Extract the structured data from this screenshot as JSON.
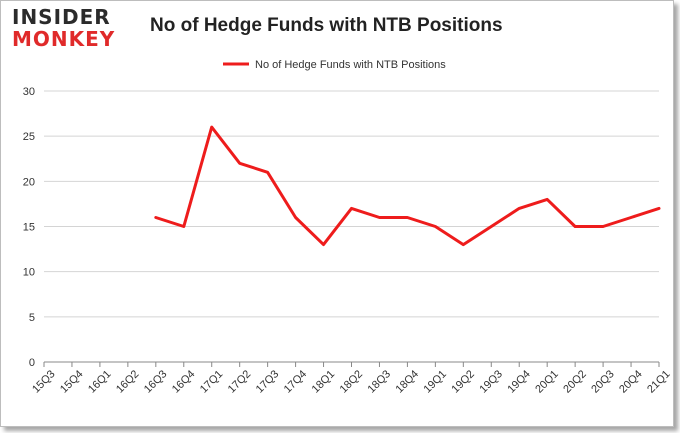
{
  "brand": {
    "line1": "INSIDER",
    "line2": "MONKEY",
    "colors": {
      "dark": "#2b2b2b",
      "red": "#e02a2a"
    }
  },
  "chart_data": {
    "type": "line",
    "title": "No of Hedge Funds with NTB Positions",
    "legend": {
      "position": "top",
      "entries": [
        "No of Hedge Funds with NTB Positions"
      ]
    },
    "xlabel": "",
    "ylabel": "",
    "categories": [
      "15Q3",
      "15Q4",
      "16Q1",
      "16Q2",
      "16Q3",
      "16Q4",
      "17Q1",
      "17Q2",
      "17Q3",
      "17Q4",
      "18Q1",
      "18Q2",
      "18Q3",
      "18Q4",
      "19Q1",
      "19Q2",
      "19Q3",
      "19Q4",
      "20Q1",
      "20Q2",
      "20Q3",
      "20Q4",
      "21Q1"
    ],
    "series": [
      {
        "name": "No of Hedge Funds with NTB Positions",
        "color": "#ee1c1c",
        "values": [
          null,
          null,
          null,
          null,
          16,
          15,
          26,
          22,
          21,
          16,
          13,
          17,
          16,
          16,
          15,
          13,
          15,
          17,
          18,
          15,
          15,
          16,
          17
        ]
      }
    ],
    "ylim": [
      0,
      30
    ],
    "yticks": [
      0,
      5,
      10,
      15,
      20,
      25,
      30
    ],
    "grid": true
  }
}
